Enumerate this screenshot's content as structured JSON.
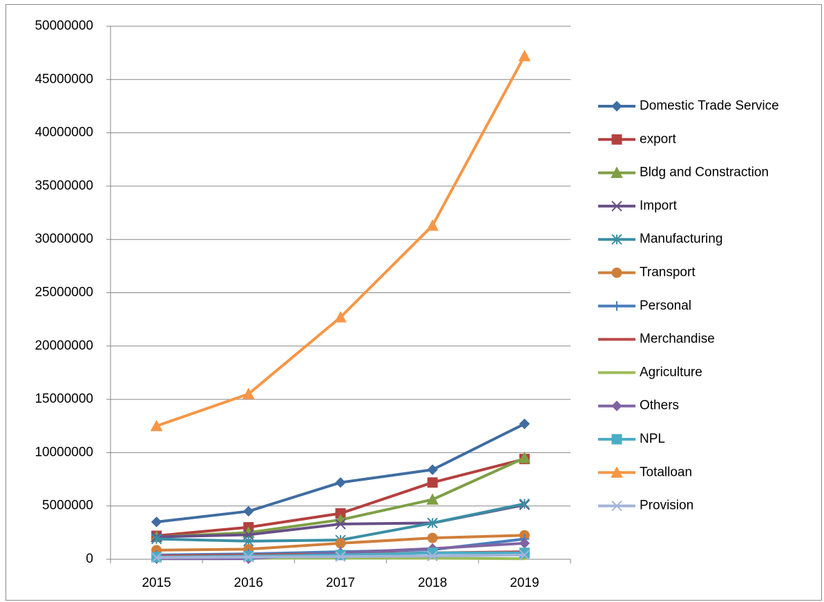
{
  "chart_data": {
    "type": "line",
    "categories": [
      "2015",
      "2016",
      "2017",
      "2018",
      "2019"
    ],
    "ylim": [
      0,
      50000000
    ],
    "yticks": [
      0,
      5000000,
      10000000,
      15000000,
      20000000,
      25000000,
      30000000,
      35000000,
      40000000,
      45000000,
      50000000
    ],
    "grid": true,
    "legend": "right",
    "series": [
      {
        "name": "Domestic Trade Service",
        "color": "#3F6DA2",
        "marker": "diamond",
        "values": [
          3500000,
          4500000,
          7200000,
          8400000,
          12700000
        ]
      },
      {
        "name": "export",
        "color": "#B4403E",
        "marker": "square",
        "values": [
          2200000,
          3000000,
          4300000,
          7200000,
          9400000
        ]
      },
      {
        "name": "Bldg and Constraction",
        "color": "#7E9F45",
        "marker": "triangle",
        "values": [
          2100000,
          2500000,
          3700000,
          5600000,
          9500000
        ]
      },
      {
        "name": "Import",
        "color": "#674F87",
        "marker": "x",
        "values": [
          2100000,
          2300000,
          3300000,
          3400000,
          5100000
        ]
      },
      {
        "name": "Manufacturing",
        "color": "#3A8EA4",
        "marker": "star",
        "values": [
          1900000,
          1700000,
          1800000,
          3400000,
          5200000
        ]
      },
      {
        "name": "Transport",
        "color": "#D07F3A",
        "marker": "circle",
        "values": [
          850000,
          950000,
          1500000,
          2000000,
          2250000
        ]
      },
      {
        "name": "Personal",
        "color": "#4A7EBB",
        "marker": "plus",
        "values": [
          400000,
          500000,
          700000,
          900000,
          1900000
        ]
      },
      {
        "name": "Merchandise",
        "color": "#BE4B48",
        "marker": "dash",
        "values": [
          300000,
          400000,
          500000,
          600000,
          700000
        ]
      },
      {
        "name": "Agriculture",
        "color": "#9BBB59",
        "marker": "dash",
        "values": [
          200000,
          100000,
          100000,
          100000,
          50000
        ]
      },
      {
        "name": "Others",
        "color": "#8064A2",
        "marker": "diamond",
        "values": [
          50000,
          50000,
          600000,
          1000000,
          1500000
        ]
      },
      {
        "name": "NPL",
        "color": "#4BACC6",
        "marker": "square",
        "values": [
          200000,
          300000,
          400000,
          600000,
          600000
        ]
      },
      {
        "name": "Totalloan",
        "color": "#F79646",
        "marker": "triangle",
        "values": [
          12500000,
          15500000,
          22700000,
          31300000,
          47200000
        ]
      },
      {
        "name": "Provision",
        "color": "#A5B5D9",
        "marker": "x",
        "values": [
          150000,
          200000,
          250000,
          300000,
          400000
        ]
      }
    ]
  }
}
